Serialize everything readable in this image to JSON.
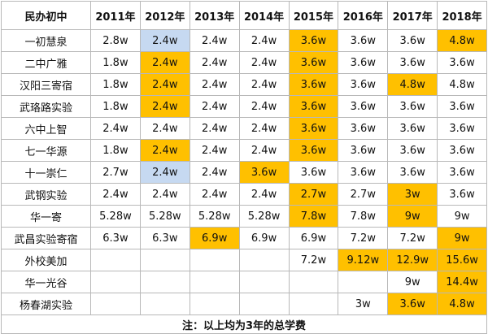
{
  "table": {
    "columns": [
      "民办初中",
      "2011年",
      "2012年",
      "2013年",
      "2014年",
      "2015年",
      "2016年",
      "2017年",
      "2018年"
    ],
    "rows": [
      {
        "name": "一初慧泉",
        "cells": [
          "2.8w",
          {
            "text": "2.4w",
            "fill": "#c6d9f1"
          },
          "2.4w",
          "2.4w",
          {
            "text": "3.6w",
            "fill": "#ffc000"
          },
          "3.6w",
          "3.6w",
          {
            "text": "4.8w",
            "fill": "#ffc000"
          }
        ]
      },
      {
        "name": "二中广雅",
        "cells": [
          "1.8w",
          {
            "text": "2.4w",
            "fill": "#ffc000"
          },
          "2.4w",
          "2.4w",
          {
            "text": "3.6w",
            "fill": "#ffc000"
          },
          "3.6w",
          "3.6w",
          "3.6w"
        ]
      },
      {
        "name": "汉阳三寄宿",
        "cells": [
          "1.8w",
          {
            "text": "2.4w",
            "fill": "#ffc000"
          },
          "2.4w",
          "2.4w",
          {
            "text": "3.6w",
            "fill": "#ffc000"
          },
          "3.6w",
          {
            "text": "4.8w",
            "fill": "#ffc000"
          },
          "4.8w"
        ]
      },
      {
        "name": "武珞路实验",
        "cells": [
          "1.8w",
          {
            "text": "2.4w",
            "fill": "#ffc000"
          },
          "2.4w",
          "2.4w",
          {
            "text": "3.6w",
            "fill": "#ffc000"
          },
          "3.6w",
          "3.6w",
          "3.6w"
        ]
      },
      {
        "name": "六中上智",
        "cells": [
          "2.4w",
          "2.4w",
          "2.4w",
          "2.4w",
          {
            "text": "3.6w",
            "fill": "#ffc000"
          },
          "3.6w",
          "3.6w",
          "3.6w"
        ]
      },
      {
        "name": "七一华源",
        "cells": [
          "1.8w",
          {
            "text": "2.4w",
            "fill": "#ffc000"
          },
          "2.4w",
          "2.4w",
          {
            "text": "3.6w",
            "fill": "#ffc000"
          },
          "3.6w",
          "3.6w",
          "3.6w"
        ]
      },
      {
        "name": "十一崇仁",
        "cells": [
          "2.7w",
          {
            "text": "2.4w",
            "fill": "#c6d9f1"
          },
          "2.4w",
          {
            "text": "3.6w",
            "fill": "#ffc000"
          },
          "3.6w",
          "3.6w",
          "3.6w",
          "3.6w"
        ]
      },
      {
        "name": "武钢实验",
        "cells": [
          "2.4w",
          "2.4w",
          "2.4w",
          "2.4w",
          {
            "text": "2.7w",
            "fill": "#ffc000"
          },
          "2.7w",
          {
            "text": "3w",
            "fill": "#ffc000"
          },
          "3.6w"
        ]
      },
      {
        "name": "华一寄",
        "cells": [
          "5.28w",
          "5.28w",
          "5.28w",
          "5.28w",
          {
            "text": "7.8w",
            "fill": "#ffc000"
          },
          "7.8w",
          {
            "text": "9w",
            "fill": "#ffc000"
          },
          "9w"
        ]
      },
      {
        "name": "武昌实验寄宿",
        "cells": [
          "6.3w",
          "6.3w",
          {
            "text": "6.9w",
            "fill": "#ffc000"
          },
          "6.9w",
          "6.9w",
          "7.2w",
          "7.2w",
          {
            "text": "9w",
            "fill": "#ffc000"
          }
        ]
      },
      {
        "name": "外校美加",
        "cells": [
          null,
          null,
          null,
          null,
          "7.2w",
          {
            "text": "9.12w",
            "fill": "#ffc000"
          },
          {
            "text": "12.9w",
            "fill": "#ffc000"
          },
          {
            "text": "15.6w",
            "fill": "#ffc000"
          }
        ]
      },
      {
        "name": "华一光谷",
        "cells": [
          null,
          null,
          null,
          null,
          null,
          null,
          "9w",
          {
            "text": "14.4w",
            "fill": "#ffc000"
          }
        ]
      },
      {
        "name": "杨春湖实验",
        "cells": [
          null,
          null,
          null,
          null,
          null,
          "3w",
          {
            "text": "3.6w",
            "fill": "#ffc000"
          },
          {
            "text": "4.8w",
            "fill": "#ffc000"
          }
        ]
      }
    ],
    "note": "注：以上均为3年的总学费"
  }
}
